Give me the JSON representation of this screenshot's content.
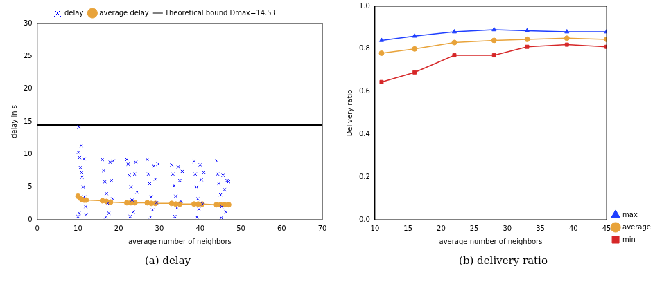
{
  "chart_data": [
    {
      "type": "scatter",
      "caption": "(a) delay",
      "x_label": "average number of neighbors",
      "y_label": "delay in s",
      "xlim": [
        0,
        70
      ],
      "xticks": [
        0,
        10,
        20,
        30,
        40,
        50,
        60,
        70
      ],
      "ylim": [
        0,
        30
      ],
      "yticks": [
        0,
        5,
        10,
        15,
        20,
        25,
        30
      ],
      "grid": false,
      "legend": "top",
      "series": [
        {
          "name": "delay",
          "color": "#0000ff",
          "marker": "x",
          "line_style": "none",
          "x": [
            10.0,
            10.2,
            10.1,
            10.8,
            10.4,
            10.6,
            11.0,
            11.3,
            11.6,
            11.9,
            10.3,
            10.9,
            11.5,
            12.0,
            16.0,
            16.3,
            16.6,
            17.0,
            17.3,
            17.6,
            17.9,
            18.2,
            18.5,
            16.8,
            18.7,
            22.0,
            22.3,
            22.6,
            23.0,
            23.3,
            23.6,
            23.9,
            24.2,
            24.5,
            22.8,
            27.0,
            27.3,
            27.6,
            28.0,
            28.3,
            28.6,
            29.0,
            29.3,
            29.6,
            27.8,
            33.0,
            33.3,
            33.6,
            34.0,
            34.3,
            34.6,
            35.0,
            35.3,
            35.6,
            33.8,
            38.5,
            38.8,
            39.1,
            39.4,
            39.7,
            40.0,
            40.3,
            40.6,
            40.9,
            39.2,
            44.0,
            44.3,
            44.6,
            45.0,
            45.3,
            45.6,
            46.0,
            46.3,
            46.6,
            47.0,
            45.2
          ],
          "values": [
            0.5,
            14.2,
            10.3,
            11.3,
            9.5,
            8.0,
            6.5,
            5.0,
            3.5,
            2.0,
            1.0,
            7.2,
            9.3,
            0.8,
            9.2,
            7.5,
            5.8,
            4.0,
            2.5,
            1.0,
            8.8,
            6.0,
            3.2,
            0.4,
            9.0,
            9.2,
            8.5,
            6.8,
            5.0,
            3.0,
            1.2,
            7.0,
            8.8,
            4.2,
            0.5,
            9.2,
            7.0,
            5.5,
            3.5,
            1.5,
            8.2,
            6.2,
            2.6,
            8.5,
            0.4,
            8.4,
            7.0,
            5.2,
            3.6,
            1.8,
            8.1,
            6.0,
            2.8,
            7.4,
            0.5,
            8.9,
            7.0,
            5.0,
            3.2,
            1.6,
            8.4,
            6.1,
            2.4,
            7.2,
            0.4,
            9.0,
            7.0,
            5.5,
            3.8,
            2.0,
            6.8,
            4.6,
            1.2,
            6.0,
            5.8,
            0.3
          ]
        },
        {
          "name": "average delay",
          "color": "#e8a33a",
          "marker": "circle",
          "line_style": "solid",
          "x": [
            10,
            10.5,
            11,
            11.5,
            12,
            16,
            17,
            18,
            22,
            23,
            24,
            27,
            28,
            29,
            33,
            34,
            35,
            38.5,
            39.5,
            40.5,
            44,
            45,
            46,
            47
          ],
          "values": [
            3.6,
            3.3,
            3.1,
            3.0,
            3.0,
            2.9,
            2.8,
            2.7,
            2.6,
            2.6,
            2.6,
            2.6,
            2.5,
            2.5,
            2.5,
            2.4,
            2.4,
            2.4,
            2.4,
            2.4,
            2.3,
            2.3,
            2.3,
            2.3
          ]
        },
        {
          "name": "Theoretical bound Dmax=14.53",
          "color": "#000000",
          "marker": "none",
          "line_style": "solid",
          "x": [
            0,
            70
          ],
          "values": [
            14.53,
            14.53
          ]
        }
      ]
    },
    {
      "type": "line",
      "caption": "(b) delivery ratio",
      "x_label": "average number of neighbors",
      "y_label": "Delivery ratio",
      "xlim": [
        10,
        45
      ],
      "xticks": [
        10,
        15,
        20,
        25,
        30,
        35,
        40,
        45
      ],
      "ylim": [
        0,
        1
      ],
      "yticks": [
        {
          "value": 0,
          "label": "0.0"
        },
        {
          "value": 0.2,
          "label": "0.2"
        },
        {
          "value": 0.4,
          "label": "0.4"
        },
        {
          "value": 0.6,
          "label": "0.6"
        },
        {
          "value": 0.8,
          "label": "0.8"
        },
        {
          "value": 1,
          "label": "1.0"
        }
      ],
      "grid": false,
      "legend": "right",
      "series": [
        {
          "name": "max",
          "color": "#1f3fff",
          "marker": "triangle",
          "line_style": "solid",
          "x": [
            11,
            16,
            22,
            28,
            33,
            39,
            45
          ],
          "values": [
            0.84,
            0.86,
            0.88,
            0.89,
            0.885,
            0.88,
            0.88
          ]
        },
        {
          "name": "average",
          "color": "#e8a33a",
          "marker": "circle",
          "line_style": "solid",
          "x": [
            11,
            16,
            22,
            28,
            33,
            39,
            45
          ],
          "values": [
            0.78,
            0.8,
            0.83,
            0.84,
            0.845,
            0.85,
            0.845
          ]
        },
        {
          "name": "min",
          "color": "#d62728",
          "marker": "square",
          "line_style": "solid",
          "x": [
            11,
            16,
            22,
            28,
            33,
            39,
            45
          ],
          "values": [
            0.645,
            0.69,
            0.77,
            0.77,
            0.81,
            0.82,
            0.81
          ]
        }
      ]
    }
  ]
}
